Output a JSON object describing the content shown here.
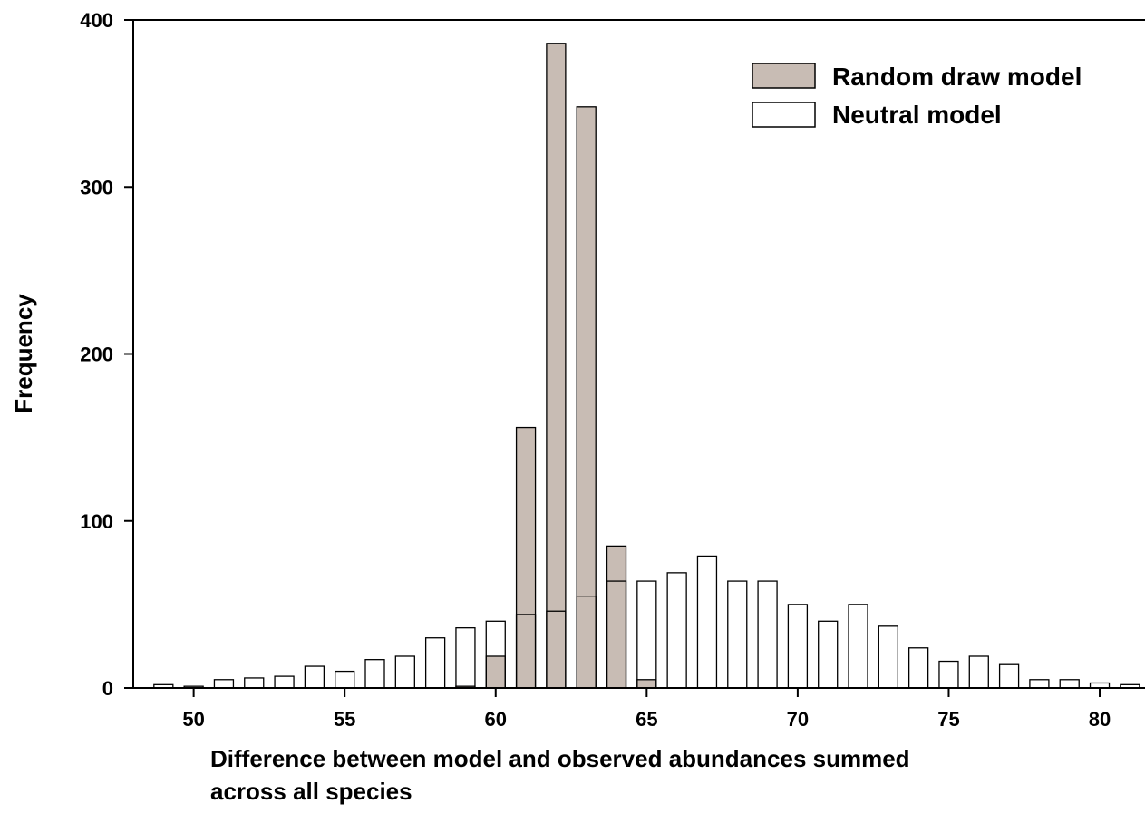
{
  "chart_data": {
    "type": "bar",
    "xlabel_line1": "Difference between model and observed abundances summed",
    "xlabel_line2": "across all species",
    "ylabel": "Frequency",
    "xlim": [
      48,
      81.5
    ],
    "ylim": [
      0,
      400
    ],
    "x_ticks": [
      50,
      55,
      60,
      65,
      70,
      75,
      80
    ],
    "y_ticks": [
      0,
      100,
      200,
      300,
      400
    ],
    "x_tick_labels": [
      "50",
      "55",
      "60",
      "65",
      "70",
      "75",
      "80"
    ],
    "y_tick_labels": [
      "0",
      "100",
      "200",
      "300",
      "400"
    ],
    "legend_position": "top-right",
    "series": [
      {
        "name": "Random draw model",
        "color": "#c8bcb4",
        "x": [
          59,
          60,
          61,
          62,
          63,
          64,
          65
        ],
        "values": [
          1,
          19,
          156,
          386,
          348,
          85,
          5
        ]
      },
      {
        "name": "Neutral model",
        "color": "#ffffff",
        "x": [
          49,
          50,
          51,
          52,
          53,
          54,
          55,
          56,
          57,
          58,
          59,
          60,
          61,
          62,
          63,
          64,
          65,
          66,
          67,
          68,
          69,
          70,
          71,
          72,
          73,
          74,
          75,
          76,
          77,
          78,
          79,
          80,
          81
        ],
        "values": [
          2,
          1,
          5,
          6,
          7,
          13,
          10,
          17,
          19,
          30,
          36,
          40,
          44,
          46,
          55,
          64,
          64,
          69,
          79,
          64,
          64,
          50,
          40,
          50,
          37,
          24,
          16,
          19,
          14,
          5,
          5,
          3,
          2
        ]
      }
    ]
  }
}
